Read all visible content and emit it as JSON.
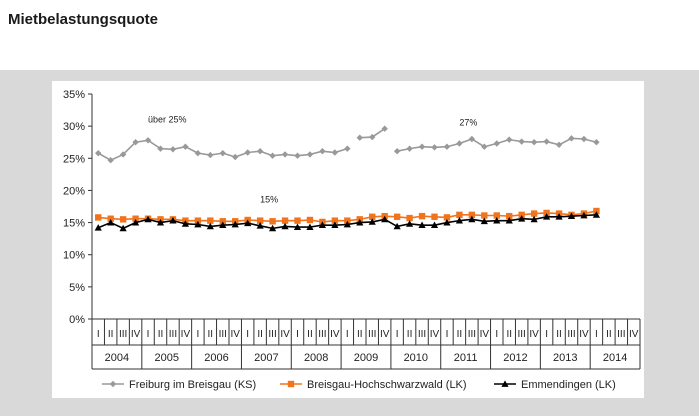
{
  "page": {
    "title": "Mietbelastungsquote"
  },
  "chart_data": {
    "type": "line",
    "title": "",
    "xlabel": "",
    "ylabel": "",
    "ylim": [
      0,
      35
    ],
    "y_ticks": [
      "0%",
      "5%",
      "10%",
      "15%",
      "20%",
      "25%",
      "30%",
      "35%"
    ],
    "grid": false,
    "legend": "bottom",
    "quarter_labels": [
      "I",
      "II",
      "III",
      "IV"
    ],
    "years": [
      "2004",
      "2005",
      "2006",
      "2007",
      "2008",
      "2009",
      "2010",
      "2011",
      "2012",
      "2013",
      "2014"
    ],
    "annotations": [
      {
        "text": "über 25%",
        "series": "Freiburg im Breisgau (KS)",
        "index": 4
      },
      {
        "text": "27%",
        "series": "Freiburg im Breisgau (KS)",
        "index": 29
      },
      {
        "text": "15%",
        "series": "Breisgau-Hochschwarzwald (LK)",
        "index": 13
      }
    ],
    "series": [
      {
        "name": "Freiburg im Breisgau (KS)",
        "color": "#999999",
        "marker": "diamond",
        "values": [
          25.8,
          24.7,
          25.6,
          27.5,
          27.8,
          26.5,
          26.4,
          26.8,
          25.8,
          25.5,
          25.8,
          25.2,
          25.9,
          26.1,
          25.4,
          25.6,
          25.4,
          25.6,
          26.1,
          25.9,
          26.5,
          28.2,
          28.3,
          29.6,
          26.1,
          26.5,
          26.8,
          26.7,
          26.8,
          27.3,
          28.0,
          26.8,
          27.3,
          27.9,
          27.6,
          27.5,
          27.6,
          27.1,
          28.1,
          28.0,
          27.5,
          null,
          null,
          null
        ],
        "breaks_after": [
          20,
          23
        ]
      },
      {
        "name": "Breisgau-Hochschwarzwald (LK)",
        "color": "#f0741e",
        "marker": "square",
        "values": [
          15.8,
          15.6,
          15.5,
          15.6,
          15.6,
          15.5,
          15.5,
          15.3,
          15.3,
          15.3,
          15.2,
          15.2,
          15.4,
          15.3,
          15.2,
          15.3,
          15.3,
          15.4,
          15.1,
          15.3,
          15.3,
          15.5,
          15.9,
          16.0,
          15.9,
          15.7,
          16.0,
          15.9,
          15.8,
          16.2,
          16.2,
          16.1,
          16.1,
          16.0,
          16.2,
          16.4,
          16.5,
          16.4,
          16.2,
          16.4,
          16.8,
          null,
          null,
          null
        ],
        "breaks_after": []
      },
      {
        "name": "Emmendingen (LK)",
        "color": "#000000",
        "marker": "triangle",
        "values": [
          14.2,
          15.0,
          14.1,
          15.0,
          15.5,
          15.0,
          15.3,
          14.8,
          14.7,
          14.4,
          14.6,
          14.7,
          14.9,
          14.5,
          14.1,
          14.4,
          14.3,
          14.3,
          14.6,
          14.6,
          14.7,
          15.0,
          15.1,
          15.5,
          14.4,
          14.8,
          14.6,
          14.6,
          15.0,
          15.3,
          15.5,
          15.2,
          15.3,
          15.3,
          15.6,
          15.5,
          15.9,
          15.9,
          16.0,
          16.1,
          16.2,
          null,
          null,
          null
        ],
        "breaks_after": []
      }
    ]
  }
}
